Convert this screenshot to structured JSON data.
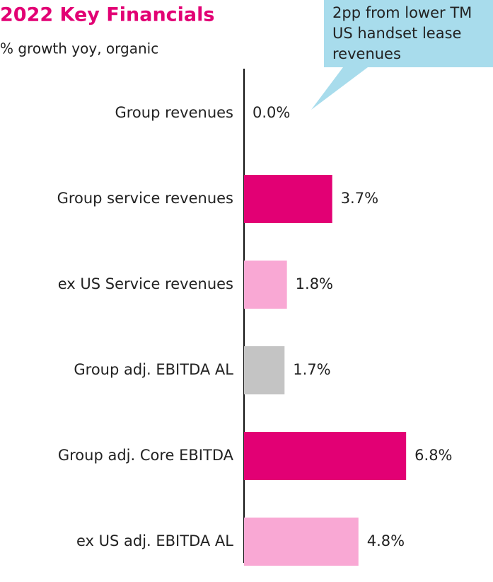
{
  "chart_data": {
    "type": "barh",
    "title": "2022 Key Financials",
    "subtitle": "% growth yoy, organic",
    "annotation": "2pp from lower TM US handset lease revenues",
    "categories": [
      "Group revenues",
      "Group service revenues",
      "ex US Service revenues",
      "Group adj. EBITDA AL",
      "Group adj. Core EBITDA",
      "ex US adj. EBITDA AL"
    ],
    "values": [
      0.0,
      3.7,
      1.8,
      1.7,
      6.8,
      4.8
    ],
    "value_labels": [
      "0.0%",
      "3.7%",
      "1.8%",
      "1.7%",
      "6.8%",
      "4.8%"
    ],
    "colors": [
      "#e20074",
      "#e20074",
      "#f9a8d4",
      "#c4c4c4",
      "#e20074",
      "#f9a8d4"
    ]
  }
}
